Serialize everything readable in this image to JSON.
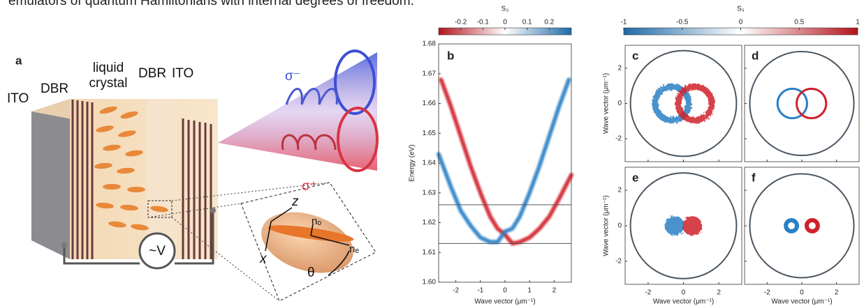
{
  "caption_fragment": "emulators of quantum Hamiltonians with internal degrees of freedom.",
  "panel_a": {
    "label": "a",
    "ito_left": "ITO",
    "dbr_left": "DBR",
    "liquid_crystal": [
      "liquid",
      "crystal"
    ],
    "dbr_right": "DBR",
    "ito_right": "ITO",
    "sigma_minus": "σ⁻",
    "sigma_plus": "σ⁺",
    "voltage": "~V",
    "z_axis": "z",
    "x_axis": "x",
    "n_o": "nₒ",
    "n_e": "nₑ",
    "theta": "θ"
  },
  "chart_data": [
    {
      "type": "line",
      "panel_label": "b",
      "colorbar": {
        "label": "S₃",
        "clim": [
          -0.3,
          0.3
        ],
        "ticks": [
          -0.2,
          -0.1,
          0,
          0.1,
          0.2
        ],
        "colors": [
          "#b3121a",
          "#ffffff",
          "#1f6aa8"
        ]
      },
      "xlabel": "Wave vector (μm⁻¹)",
      "ylabel": "Energy (eV)",
      "xlim": [
        -2.7,
        2.7
      ],
      "ylim": [
        1.6,
        1.68
      ],
      "xticks": [
        -2,
        -1,
        0,
        1,
        2
      ],
      "yticks": [
        {
          "value": 1.6,
          "label": "1.60"
        },
        1.61,
        1.62,
        1.63,
        1.64,
        1.65,
        1.66,
        1.67,
        1.68
      ],
      "hlines": [
        1.626,
        1.613
      ],
      "series": [
        {
          "color": "#d0202a",
          "x": [
            -2.6,
            -2.2,
            -1.8,
            -1.4,
            -1.0,
            -0.6,
            -0.3,
            0,
            0.3,
            0.6,
            1.0,
            1.4,
            1.8,
            2.2,
            2.7
          ],
          "values": [
            1.668,
            1.659,
            1.649,
            1.639,
            1.63,
            1.622,
            1.618,
            1.616,
            1.613,
            1.6135,
            1.615,
            1.618,
            1.622,
            1.628,
            1.636
          ]
        },
        {
          "color": "#2a80c4",
          "x": [
            -2.7,
            -2.2,
            -1.8,
            -1.4,
            -1.0,
            -0.6,
            -0.3,
            0,
            0.3,
            0.6,
            1.0,
            1.4,
            1.8,
            2.2,
            2.6
          ],
          "values": [
            1.643,
            1.632,
            1.624,
            1.619,
            1.615,
            1.6135,
            1.6135,
            1.617,
            1.618,
            1.622,
            1.63,
            1.639,
            1.649,
            1.659,
            1.668
          ]
        }
      ]
    },
    {
      "type": "disc",
      "colorbar": {
        "label": "S₃",
        "clim": [
          -1,
          1
        ],
        "ticks": [
          -1,
          -0.5,
          0,
          0.5,
          1
        ],
        "colors": [
          "#1f6aa8",
          "#ffffff",
          "#b3121a"
        ]
      },
      "xlabel": "Wave vector (μm⁻¹)",
      "ylabel": "Wave vector (μm⁻¹)",
      "xlim": [
        -3.3,
        3.3
      ],
      "ylim": [
        -3.3,
        3.3
      ],
      "xticks": [
        -2,
        0,
        2
      ],
      "yticks": [
        -2,
        0,
        2
      ],
      "aperture": 3,
      "panels": [
        {
          "label": "c",
          "features": [
            {
              "style": "noisy-ring",
              "color": "#2a80c4",
              "cx": -0.65,
              "cy": 0,
              "r": 0.95
            },
            {
              "style": "noisy-ring",
              "color": "#d0202a",
              "cx": 0.65,
              "cy": 0,
              "r": 0.95
            }
          ]
        },
        {
          "label": "d",
          "features": [
            {
              "style": "ring",
              "color": "#2a80c4",
              "cx": -0.55,
              "cy": 0,
              "r": 0.85
            },
            {
              "style": "ring",
              "color": "#d0202a",
              "cx": 0.55,
              "cy": 0,
              "r": 0.85
            }
          ]
        },
        {
          "label": "e",
          "features": [
            {
              "style": "noisy-disc",
              "color": "#2a80c4",
              "cx": -0.5,
              "cy": 0,
              "r": 0.55
            },
            {
              "style": "noisy-disc",
              "color": "#d0202a",
              "cx": 0.5,
              "cy": 0,
              "r": 0.55
            }
          ]
        },
        {
          "label": "f",
          "features": [
            {
              "style": "thick-ring",
              "color": "#2a80c4",
              "cx": -0.6,
              "cy": 0,
              "r": 0.32
            },
            {
              "style": "thick-ring",
              "color": "#d0202a",
              "cx": 0.6,
              "cy": 0,
              "r": 0.32
            }
          ]
        }
      ]
    }
  ]
}
